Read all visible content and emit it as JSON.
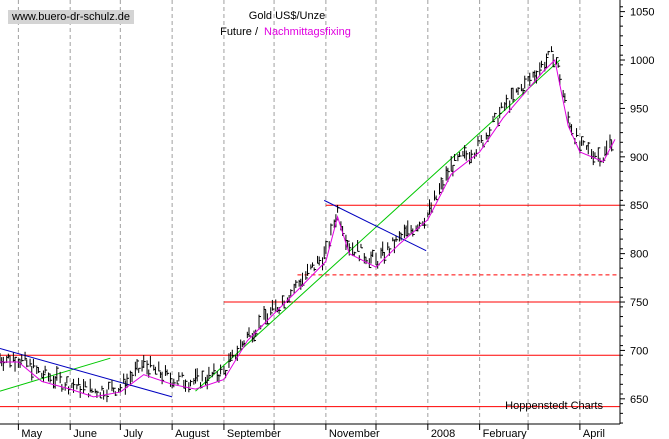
{
  "header": {
    "site": "www.buero-dr-schulz.de",
    "title": "Gold US$/Unze",
    "series_future": "Future /",
    "series_fixing": "Nachmittagsfixing"
  },
  "footer": {
    "credit": "Hoppenstedt Charts"
  },
  "colors": {
    "background": "#ffffff",
    "bars": "#000000",
    "fixing_line": "#e000e0",
    "support_resistance": "#ff0000",
    "uptrend": "#00c800",
    "downtrend": "#0000c0",
    "grid": "#a0a0a0"
  },
  "chart_data": {
    "type": "line",
    "title": "Gold US$/Unze",
    "legend": [
      "Future /",
      "Nachmittagsfixing"
    ],
    "y_ticks": [
      650,
      700,
      750,
      800,
      850,
      900,
      950,
      1000,
      1050
    ],
    "y_range": [
      624,
      1062
    ],
    "x_labels": [
      "May",
      "June",
      "July",
      "August",
      "September",
      "November",
      "2008",
      "February",
      "April"
    ],
    "x_range": [
      "2007-04-20",
      "2008-04-25"
    ],
    "month_grid": [
      "2007-05-01",
      "2007-06-01",
      "2007-07-01",
      "2007-08-01",
      "2007-09-01",
      "2007-10-01",
      "2007-11-01",
      "2007-12-01",
      "2008-01-01",
      "2008-02-01",
      "2008-03-01",
      "2008-04-01"
    ],
    "grid": "vertical dashed at month starts",
    "series": [
      {
        "name": "Future /",
        "style": "ohlc bars",
        "x": [
          "2007-04-20",
          "2007-05-01",
          "2007-05-15",
          "2007-06-01",
          "2007-06-15",
          "2007-07-01",
          "2007-07-15",
          "2007-08-01",
          "2007-08-15",
          "2007-09-01",
          "2007-09-15",
          "2007-10-01",
          "2007-10-15",
          "2007-11-01",
          "2007-11-08",
          "2007-11-15",
          "2007-12-01",
          "2007-12-15",
          "2008-01-01",
          "2008-01-15",
          "2008-02-01",
          "2008-02-15",
          "2008-03-01",
          "2008-03-10",
          "2008-03-17",
          "2008-03-25",
          "2008-04-01",
          "2008-04-15",
          "2008-04-22"
        ],
        "y": [
          692,
          692,
          675,
          665,
          658,
          662,
          685,
          670,
          668,
          678,
          715,
          742,
          768,
          800,
          845,
          808,
          792,
          815,
          840,
          890,
          912,
          950,
          978,
          996,
          1008,
          940,
          910,
          900,
          925
        ]
      },
      {
        "name": "Nachmittagsfixing",
        "style": "line",
        "x": [
          "2007-04-20",
          "2007-05-01",
          "2007-05-15",
          "2007-06-01",
          "2007-06-15",
          "2007-07-01",
          "2007-07-15",
          "2007-08-01",
          "2007-08-15",
          "2007-09-01",
          "2007-09-15",
          "2007-10-01",
          "2007-10-15",
          "2007-11-01",
          "2007-11-08",
          "2007-11-15",
          "2007-12-01",
          "2007-12-15",
          "2008-01-01",
          "2008-01-15",
          "2008-02-01",
          "2008-02-15",
          "2008-03-01",
          "2008-03-10",
          "2008-03-17",
          "2008-03-25",
          "2008-04-01",
          "2008-04-15",
          "2008-04-22"
        ],
        "y": [
          688,
          688,
          668,
          660,
          652,
          657,
          675,
          665,
          660,
          670,
          710,
          738,
          762,
          792,
          838,
          800,
          786,
          810,
          835,
          882,
          905,
          940,
          970,
          988,
          1000,
          932,
          905,
          895,
          918
        ]
      }
    ],
    "horizontal_levels": [
      {
        "value": 642,
        "style": "solid"
      },
      {
        "value": 695,
        "style": "solid"
      },
      {
        "value": 750,
        "style": "solid",
        "from": "2007-09-01"
      },
      {
        "value": 778,
        "style": "dashed",
        "from": "2007-10-15"
      },
      {
        "value": 850,
        "style": "solid",
        "from": "2007-11-01"
      }
    ],
    "trendlines": [
      {
        "kind": "uptrend",
        "from": [
          "2007-04-20",
          658
        ],
        "to": [
          "2007-06-25",
          692
        ]
      },
      {
        "kind": "downtrend",
        "from": [
          "2007-04-20",
          702
        ],
        "to": [
          "2007-08-01",
          652
        ]
      },
      {
        "kind": "uptrend",
        "from": [
          "2007-08-15",
          658
        ],
        "to": [
          "2008-03-20",
          1000
        ]
      },
      {
        "kind": "downtrend",
        "from": [
          "2007-10-31",
          855
        ],
        "to": [
          "2007-12-31",
          803
        ]
      }
    ]
  }
}
